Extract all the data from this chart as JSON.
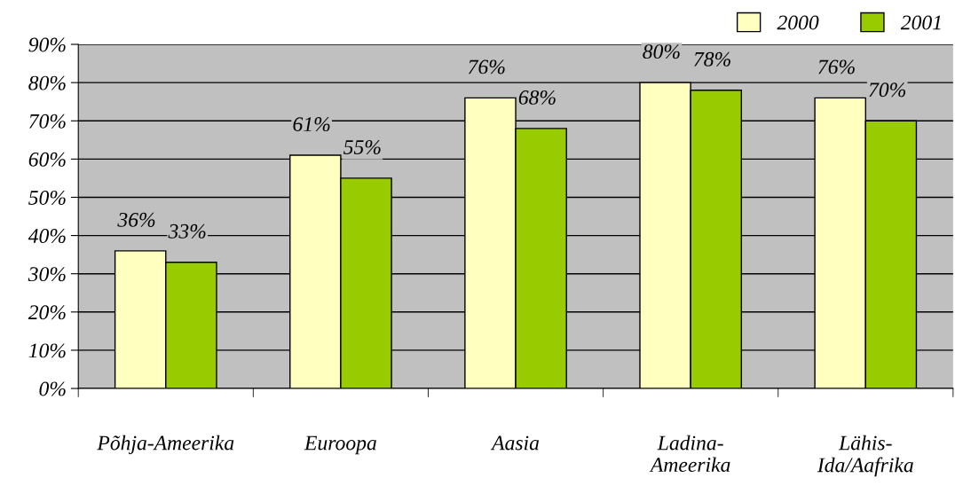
{
  "chart_data": {
    "type": "bar",
    "categories": [
      "Põhja-Ameerika",
      "Euroopa",
      "Aasia",
      "Ladina-\nAmeerika",
      "Lähis-\nIda/Aafrika"
    ],
    "series": [
      {
        "name": "2000",
        "color": "#ffffc0",
        "values": [
          36,
          61,
          76,
          80,
          76
        ],
        "value_labels": [
          "36%",
          "61%",
          "76%",
          "80%",
          "76%"
        ]
      },
      {
        "name": "2001",
        "color": "#99cc00",
        "values": [
          33,
          55,
          68,
          78,
          70
        ],
        "value_labels": [
          "33%",
          "55%",
          "68%",
          "78%",
          "70%"
        ]
      }
    ],
    "ylim": [
      0,
      90
    ],
    "yticks": [
      {
        "value": 0,
        "label": "0%"
      },
      {
        "value": 10,
        "label": "10%"
      },
      {
        "value": 20,
        "label": "20%"
      },
      {
        "value": 30,
        "label": "30%"
      },
      {
        "value": 40,
        "label": "40%"
      },
      {
        "value": 50,
        "label": "50%"
      },
      {
        "value": 60,
        "label": "60%"
      },
      {
        "value": 70,
        "label": "70%"
      },
      {
        "value": 80,
        "label": "80%"
      },
      {
        "value": 90,
        "label": "90%"
      }
    ],
    "grid": "y",
    "legend": "top right"
  }
}
